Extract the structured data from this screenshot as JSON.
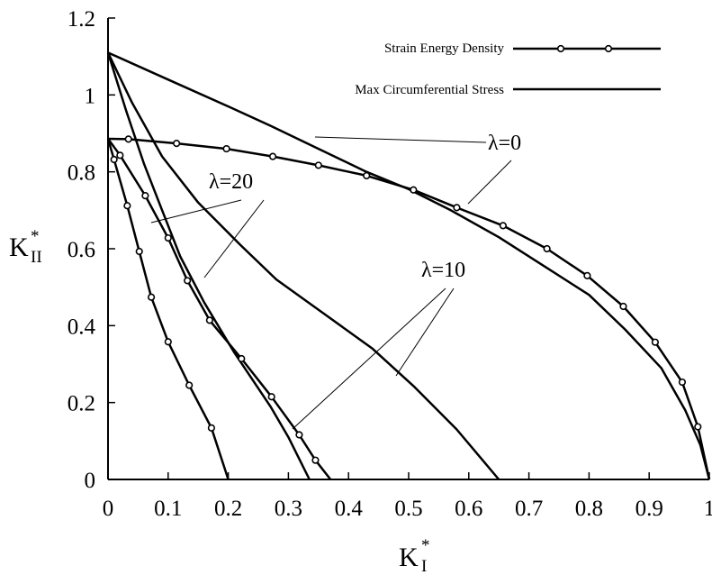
{
  "chart_data": {
    "type": "line",
    "xlabel": {
      "main": "K",
      "sub": "I",
      "sup": "*"
    },
    "ylabel": {
      "main": "K",
      "sub": "II",
      "sup": "*"
    },
    "xlim": [
      0,
      1
    ],
    "ylim": [
      0,
      1.2
    ],
    "x_ticks": [
      "0",
      "0.1",
      "0.2",
      "0.3",
      "0.4",
      "0.5",
      "0.6",
      "0.7",
      "0.8",
      "0.9",
      "1"
    ],
    "y_ticks": [
      "0",
      "0.2",
      "0.4",
      "0.6",
      "0.8",
      "1",
      "1.2"
    ],
    "grid": false,
    "legend_position": "top-right",
    "legend": [
      {
        "label": "Strain Energy Density",
        "marker": "circle"
      },
      {
        "label": "Max Circumferential Stress",
        "marker": "none"
      }
    ],
    "annotations": [
      {
        "text": "λ=0"
      },
      {
        "text": "λ=20"
      },
      {
        "text": "λ=10"
      }
    ],
    "series": [
      {
        "criterion": "Strain Energy Density",
        "lambda": 0,
        "marker": "circle",
        "points": [
          [
            0,
            0.886
          ],
          [
            0.034,
            0.885
          ],
          [
            0.114,
            0.874
          ],
          [
            0.197,
            0.86
          ],
          [
            0.274,
            0.84
          ],
          [
            0.35,
            0.817
          ],
          [
            0.43,
            0.79
          ],
          [
            0.508,
            0.753
          ],
          [
            0.58,
            0.707
          ],
          [
            0.657,
            0.66
          ],
          [
            0.73,
            0.6
          ],
          [
            0.797,
            0.53
          ],
          [
            0.857,
            0.45
          ],
          [
            0.91,
            0.357
          ],
          [
            0.955,
            0.253
          ],
          [
            0.981,
            0.137
          ],
          [
            1.0,
            0
          ]
        ]
      },
      {
        "criterion": "Max Circumferential Stress",
        "lambda": 0,
        "marker": "none",
        "points": [
          [
            0,
            1.11
          ],
          [
            0.1,
            1.04
          ],
          [
            0.2,
            0.97
          ],
          [
            0.27,
            0.92
          ],
          [
            0.35,
            0.86
          ],
          [
            0.43,
            0.8
          ],
          [
            0.5,
            0.755
          ],
          [
            0.57,
            0.7
          ],
          [
            0.65,
            0.63
          ],
          [
            0.72,
            0.56
          ],
          [
            0.8,
            0.48
          ],
          [
            0.86,
            0.39
          ],
          [
            0.92,
            0.29
          ],
          [
            0.96,
            0.18
          ],
          [
            0.985,
            0.09
          ],
          [
            1.0,
            0
          ]
        ]
      },
      {
        "criterion": "Strain Energy Density",
        "lambda": 10,
        "marker": "circle",
        "points": [
          [
            0,
            0.886
          ],
          [
            0.02,
            0.843
          ],
          [
            0.062,
            0.738
          ],
          [
            0.1,
            0.628
          ],
          [
            0.132,
            0.517
          ],
          [
            0.169,
            0.414
          ],
          [
            0.222,
            0.314
          ],
          [
            0.272,
            0.215
          ],
          [
            0.318,
            0.116
          ],
          [
            0.345,
            0.05
          ],
          [
            0.37,
            0
          ]
        ]
      },
      {
        "criterion": "Max Circumferential Stress",
        "lambda": 10,
        "marker": "none",
        "points": [
          [
            0,
            1.11
          ],
          [
            0.04,
            0.98
          ],
          [
            0.09,
            0.84
          ],
          [
            0.15,
            0.72
          ],
          [
            0.22,
            0.61
          ],
          [
            0.28,
            0.52
          ],
          [
            0.36,
            0.43
          ],
          [
            0.44,
            0.34
          ],
          [
            0.51,
            0.24
          ],
          [
            0.58,
            0.13
          ],
          [
            0.65,
            0
          ]
        ]
      },
      {
        "criterion": "Strain Energy Density",
        "lambda": 20,
        "marker": "circle",
        "points": [
          [
            0,
            0.886
          ],
          [
            0.01,
            0.832
          ],
          [
            0.032,
            0.712
          ],
          [
            0.052,
            0.593
          ],
          [
            0.072,
            0.474
          ],
          [
            0.1,
            0.358
          ],
          [
            0.135,
            0.245
          ],
          [
            0.172,
            0.134
          ],
          [
            0.2,
            0
          ]
        ]
      },
      {
        "criterion": "Max Circumferential Stress",
        "lambda": 20,
        "marker": "none",
        "points": [
          [
            0,
            1.11
          ],
          [
            0.03,
            0.96
          ],
          [
            0.06,
            0.82
          ],
          [
            0.09,
            0.7
          ],
          [
            0.12,
            0.58
          ],
          [
            0.16,
            0.46
          ],
          [
            0.21,
            0.33
          ],
          [
            0.27,
            0.19
          ],
          [
            0.3,
            0.11
          ],
          [
            0.335,
            0
          ]
        ]
      }
    ]
  }
}
